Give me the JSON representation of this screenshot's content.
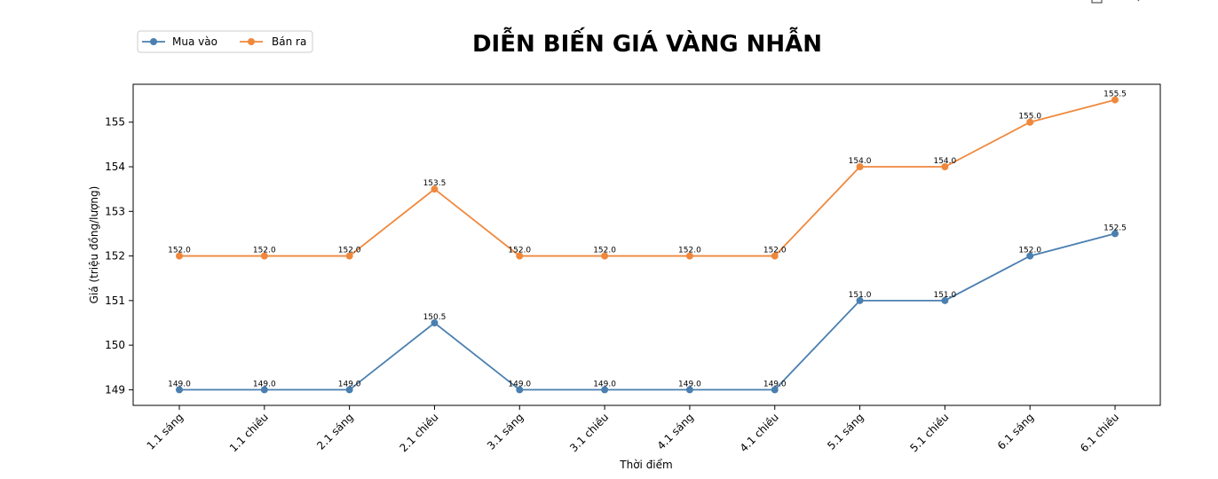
{
  "chart_data": {
    "type": "line",
    "title": "DIỄN BIẾN GIÁ VÀNG NHẪN",
    "xlabel": "Thời điểm",
    "ylabel": "Giá (triệu đồng/lượng)",
    "categories": [
      "1.1 sáng",
      "1.1 chiều",
      "2.1 sáng",
      "2.1 chiều",
      "3.1 sáng",
      "3.1 chiều",
      "4.1 sáng",
      "4.1 chiều",
      "5.1 sáng",
      "5.1 chiều",
      "6.1 sáng",
      "6.1 chiều"
    ],
    "series": [
      {
        "name": "Mua vào",
        "color": "#4a7fb0",
        "values": [
          149.0,
          149.0,
          149.0,
          150.5,
          149.0,
          149.0,
          149.0,
          149.0,
          151.0,
          151.0,
          152.0,
          152.5
        ]
      },
      {
        "name": "Bán ra",
        "color": "#f0883c",
        "values": [
          152.0,
          152.0,
          152.0,
          153.5,
          152.0,
          152.0,
          152.0,
          152.0,
          154.0,
          154.0,
          155.0,
          155.5
        ]
      }
    ],
    "ylim": [
      148.65,
      155.85
    ],
    "yticks": [
      149,
      150,
      151,
      152,
      153,
      154,
      155
    ],
    "grid": false,
    "legend_position": "top-left"
  }
}
